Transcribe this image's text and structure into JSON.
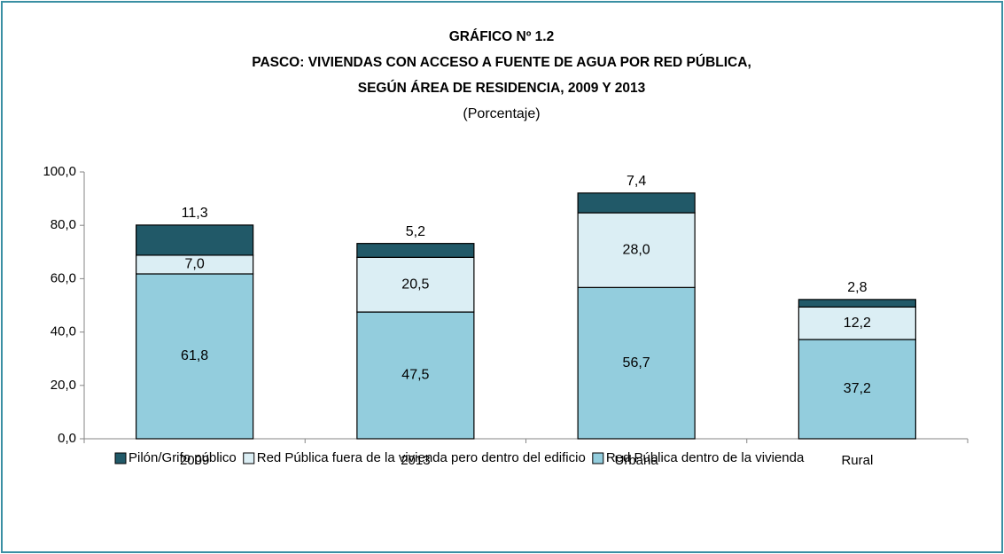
{
  "chart_data": {
    "type": "stacked_bar",
    "title": "GRÁFICO Nº 1.2",
    "title_lines": [
      "PASCO: VIVIENDAS CON ACCESO A FUENTE DE AGUA POR RED PÚBLICA,",
      "SEGÚN ÁREA DE RESIDENCIA,  2009 Y 2013"
    ],
    "subtitle": "(Porcentaje)",
    "categories": [
      "2009",
      "2013",
      "Urbana",
      "Rural"
    ],
    "series": [
      {
        "name": "Pilón/Grifo público",
        "color": "#215968",
        "values": [
          11.3,
          5.2,
          7.4,
          2.8
        ],
        "value_labels": [
          "11,3",
          "5,2",
          "7,4",
          "2,8"
        ]
      },
      {
        "name": "Red Pública fuera de la vivienda pero dentro del edificio",
        "color": "#dbeef4",
        "values": [
          7.0,
          20.5,
          28.0,
          12.2
        ],
        "value_labels": [
          "7,0",
          "20,5",
          "28,0",
          "12,2"
        ]
      },
      {
        "name": "Red Pública dentro de la vivienda",
        "color": "#93cddd",
        "values": [
          61.8,
          47.5,
          56.7,
          37.2
        ],
        "value_labels": [
          "61,8",
          "47,5",
          "56,7",
          "37,2"
        ]
      }
    ],
    "ylim": [
      0,
      100
    ],
    "yticks": [
      {
        "value": 0,
        "label": "0,0"
      },
      {
        "value": 20,
        "label": "20,0"
      },
      {
        "value": 40,
        "label": "40,0"
      },
      {
        "value": 60,
        "label": "60,0"
      },
      {
        "value": 80,
        "label": "80,0"
      },
      {
        "value": 100,
        "label": "100,0"
      }
    ],
    "legend": "bottom"
  }
}
